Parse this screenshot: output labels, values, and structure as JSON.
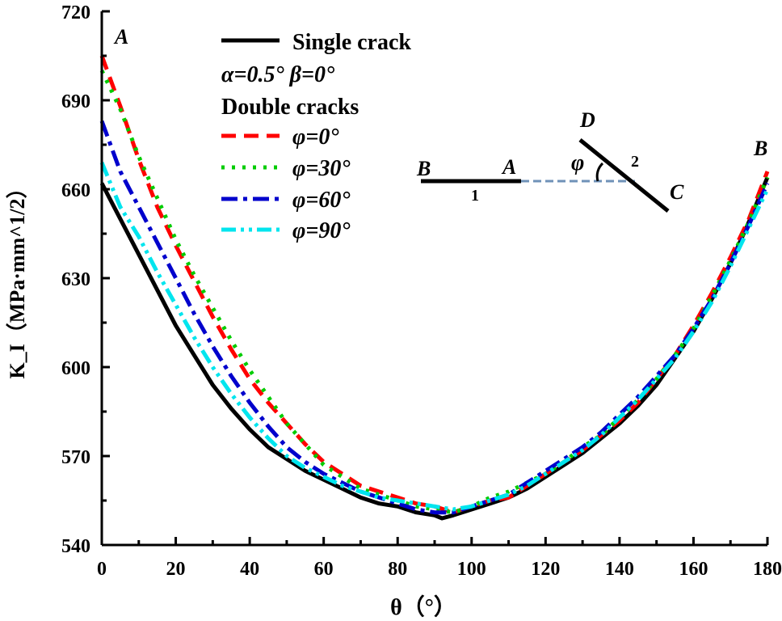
{
  "chart_data": {
    "type": "line",
    "xlabel": "θ（°）",
    "ylabel": "K_I（MPa·mm^1/2）",
    "xlim": [
      0,
      180
    ],
    "ylim": [
      540,
      720
    ],
    "xticks": [
      0,
      20,
      40,
      60,
      80,
      100,
      120,
      140,
      160,
      180
    ],
    "yticks": [
      540,
      570,
      600,
      630,
      660,
      690,
      720
    ],
    "grid": false,
    "legend_position": "top-left",
    "legend": {
      "single_heading": "Single crack",
      "params": "α=0.5° β=0°",
      "double_heading": "Double cracks"
    },
    "point_labels": {
      "A": "A",
      "B": "B"
    },
    "series": [
      {
        "name": "Single crack",
        "color": "#000000",
        "style": "solid",
        "x": [
          0,
          5,
          10,
          15,
          20,
          25,
          30,
          35,
          40,
          45,
          50,
          55,
          60,
          65,
          70,
          75,
          80,
          85,
          90,
          92,
          95,
          100,
          105,
          110,
          115,
          120,
          125,
          130,
          135,
          140,
          145,
          150,
          155,
          160,
          165,
          170,
          175,
          180
        ],
        "y": [
          662,
          650,
          638,
          626,
          614,
          604,
          594,
          586,
          579,
          573,
          569,
          565,
          562,
          559,
          556,
          554,
          553,
          551,
          550,
          549,
          550,
          552,
          554,
          556,
          559,
          563,
          567,
          571,
          576,
          581,
          587,
          594,
          603,
          612,
          623,
          635,
          649,
          664
        ]
      },
      {
        "name": "φ=0°",
        "color": "#ff0000",
        "style": "dash",
        "x": [
          0,
          5,
          10,
          15,
          20,
          25,
          30,
          35,
          40,
          45,
          50,
          55,
          60,
          65,
          70,
          75,
          80,
          85,
          90,
          95,
          100,
          105,
          110,
          115,
          120,
          125,
          130,
          135,
          140,
          145,
          150,
          155,
          160,
          165,
          170,
          175,
          180
        ],
        "y": [
          705,
          688,
          670,
          654,
          641,
          629,
          617,
          606,
          596,
          588,
          581,
          574,
          568,
          564,
          560,
          558,
          556,
          554,
          553,
          551,
          553,
          555,
          556,
          560,
          564,
          568,
          572,
          577,
          582,
          588,
          596,
          604,
          614,
          625,
          637,
          650,
          666
        ]
      },
      {
        "name": "φ=30°",
        "color": "#00cc00",
        "style": "dot",
        "x": [
          0,
          5,
          10,
          15,
          20,
          25,
          30,
          35,
          40,
          45,
          50,
          55,
          60,
          65,
          70,
          75,
          80,
          85,
          90,
          95,
          100,
          105,
          110,
          115,
          120,
          125,
          130,
          135,
          140,
          145,
          150,
          155,
          160,
          165,
          170,
          175,
          180
        ],
        "y": [
          700,
          687,
          671,
          657,
          643,
          631,
          620,
          609,
          599,
          590,
          581,
          574,
          567,
          563,
          559,
          557,
          555,
          553,
          552,
          551,
          553,
          556,
          558,
          561,
          564,
          568,
          573,
          577,
          583,
          589,
          596,
          604,
          613,
          624,
          636,
          649,
          664
        ]
      },
      {
        "name": "φ=60°",
        "color": "#0000cc",
        "style": "dashdot",
        "x": [
          0,
          5,
          10,
          15,
          20,
          25,
          30,
          35,
          40,
          45,
          50,
          55,
          60,
          65,
          70,
          75,
          80,
          85,
          90,
          95,
          100,
          105,
          110,
          115,
          120,
          125,
          130,
          135,
          140,
          145,
          150,
          155,
          160,
          165,
          170,
          175,
          180
        ],
        "y": [
          683,
          666,
          654,
          642,
          630,
          618,
          607,
          597,
          588,
          580,
          573,
          568,
          564,
          561,
          558,
          556,
          554,
          552,
          551,
          551,
          553,
          555,
          557,
          561,
          565,
          569,
          573,
          578,
          584,
          590,
          597,
          604,
          613,
          623,
          635,
          648,
          662
        ]
      },
      {
        "name": "φ=90°",
        "color": "#00e5ee",
        "style": "dashdotdot",
        "x": [
          0,
          5,
          10,
          15,
          20,
          25,
          30,
          35,
          40,
          45,
          50,
          55,
          60,
          65,
          70,
          75,
          80,
          85,
          90,
          95,
          100,
          105,
          110,
          115,
          120,
          125,
          130,
          135,
          140,
          145,
          150,
          155,
          160,
          165,
          170,
          175,
          180
        ],
        "y": [
          669,
          654,
          644,
          632,
          621,
          610,
          600,
          591,
          583,
          576,
          570,
          566,
          563,
          560,
          558,
          556,
          555,
          554,
          553,
          552,
          553,
          555,
          557,
          560,
          564,
          568,
          572,
          577,
          583,
          589,
          596,
          603,
          612,
          622,
          634,
          647,
          660
        ]
      }
    ],
    "inset": {
      "labels": {
        "B": "B",
        "A": "A",
        "C": "C",
        "D": "D",
        "phi": "φ",
        "crack1": "1",
        "crack2": "2"
      }
    }
  }
}
